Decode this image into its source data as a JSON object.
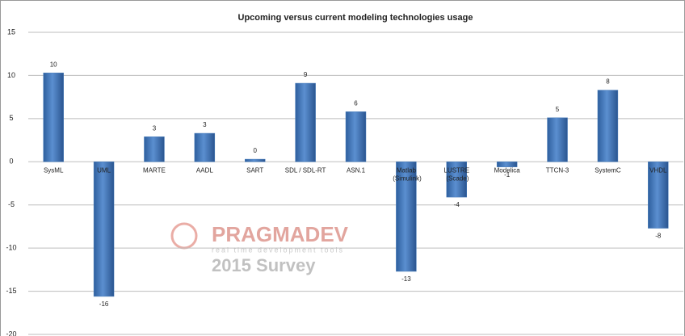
{
  "chart_data": {
    "type": "bar",
    "title": "Upcoming versus current modeling technologies usage",
    "categories": [
      "SysML",
      "UML",
      "MARTE",
      "AADL",
      "SART",
      "SDL / SDL-RT",
      "ASN.1",
      "Matlab (Simulink)",
      "LUSTRE (Scade)",
      "Modelica",
      "TTCN-3",
      "SystemC",
      "VHDL"
    ],
    "values": [
      10.3,
      -15.6,
      2.9,
      3.3,
      0.3,
      9.1,
      5.8,
      -12.7,
      -4.1,
      -0.6,
      5.1,
      8.3,
      -7.7
    ],
    "value_labels": [
      "10",
      "-16",
      "3",
      "3",
      "0",
      "9",
      "6",
      "-13",
      "-4",
      "-1",
      "5",
      "8",
      "-8"
    ],
    "color": "#4a7ebb",
    "ylim": [
      -20,
      15
    ],
    "yticks": [
      -20,
      -15,
      -10,
      -5,
      0,
      5,
      10,
      15
    ],
    "grid": true,
    "watermark": {
      "brand": "PRAGMADEV",
      "tagline": "real time development tools",
      "survey": "2015 Survey"
    }
  }
}
